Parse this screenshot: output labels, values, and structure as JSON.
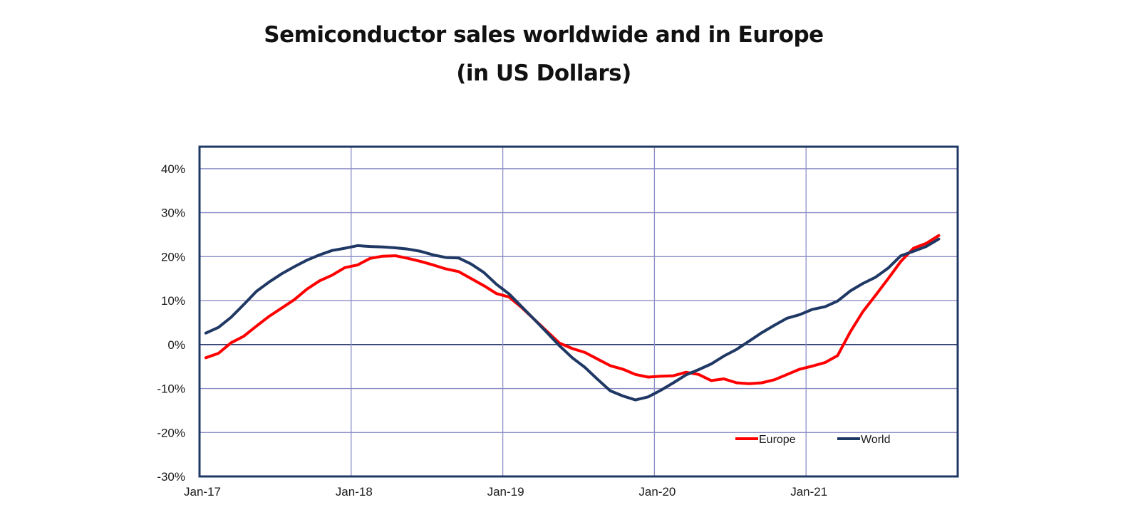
{
  "chart_data": {
    "type": "line",
    "title": "Semiconductor sales worldwide and in Europe",
    "subtitle": "(in US Dollars)",
    "xlabel": "",
    "ylabel": "",
    "ylim": [
      -30,
      45
    ],
    "yticks": [
      -30,
      -20,
      -10,
      0,
      10,
      20,
      30,
      40
    ],
    "ytick_labels": [
      "-30%",
      "-20%",
      "-10%",
      "0%",
      "10%",
      "20%",
      "30%",
      "40%"
    ],
    "xticks": [
      "Jan-17",
      "Jan-18",
      "Jan-19",
      "Jan-20",
      "Jan-21"
    ],
    "xlim_months": [
      0,
      60
    ],
    "x_start": "Jan-17",
    "x_step": "month",
    "grid": true,
    "legend_position": "bottom-right",
    "series": [
      {
        "name": "Europe",
        "color": "#ff0000",
        "values": [
          -3.0,
          -2.0,
          0.4,
          1.9,
          4.2,
          6.4,
          8.3,
          10.2,
          12.6,
          14.5,
          15.8,
          17.5,
          18.1,
          19.6,
          20.1,
          20.2,
          19.6,
          18.9,
          18.1,
          17.2,
          16.6,
          15.0,
          13.4,
          11.6,
          10.8,
          8.4,
          5.7,
          3.0,
          0.3,
          -0.9,
          -1.8,
          -3.3,
          -4.8,
          -5.6,
          -6.8,
          -7.4,
          -7.2,
          -7.1,
          -6.3,
          -6.8,
          -8.2,
          -7.8,
          -8.7,
          -8.9,
          -8.7,
          -8.0,
          -6.8,
          -5.6,
          -4.9,
          -4.1,
          -2.5,
          2.9,
          7.5,
          11.2,
          15.0,
          18.9,
          21.9,
          23.0,
          24.8
        ]
      },
      {
        "name": "World",
        "color": "#1f3864",
        "values": [
          2.6,
          3.9,
          6.2,
          9.1,
          12.1,
          14.2,
          16.1,
          17.7,
          19.2,
          20.4,
          21.4,
          21.9,
          22.5,
          22.3,
          22.2,
          22.0,
          21.7,
          21.2,
          20.4,
          19.8,
          19.7,
          18.3,
          16.4,
          13.7,
          11.5,
          8.6,
          5.7,
          2.7,
          -0.3,
          -3.0,
          -5.2,
          -7.9,
          -10.5,
          -11.7,
          -12.6,
          -11.9,
          -10.4,
          -8.7,
          -6.9,
          -5.7,
          -4.4,
          -2.6,
          -1.1,
          0.8,
          2.7,
          4.4,
          6.0,
          6.8,
          8.0,
          8.6,
          9.9,
          12.2,
          13.9,
          15.3,
          17.4,
          20.2,
          21.2,
          22.3,
          24.0
        ]
      }
    ]
  },
  "colors": {
    "frame": "#1f3864",
    "grid": "#8e8ec8",
    "zero_line": "#2b3a6e"
  }
}
